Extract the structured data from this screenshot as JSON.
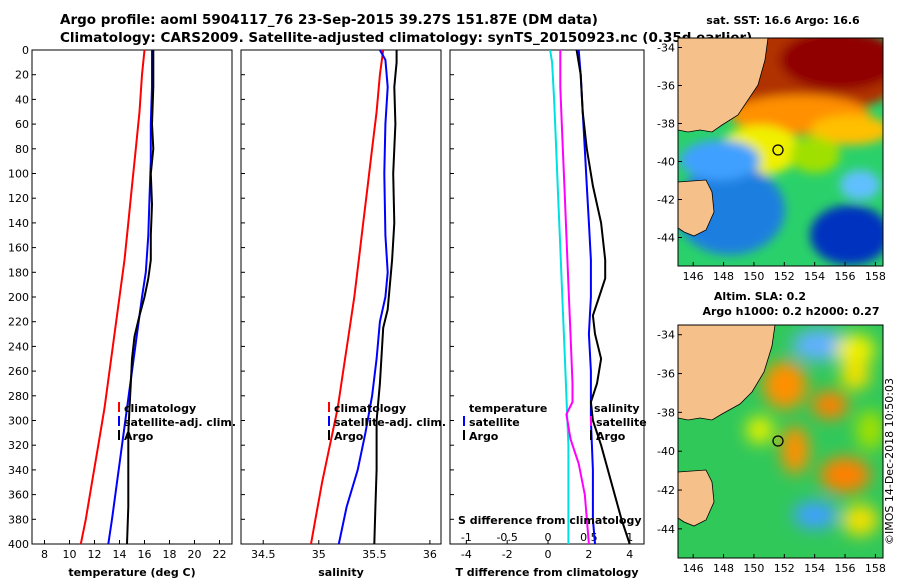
{
  "header": {
    "line1": "Argo profile: aoml 5904117_76 23-Sep-2015 39.27S 151.87E (DM data)",
    "line2": "Climatology: CARS2009. Satellite-adjusted climatology: synTS_20150923.nc (0.35d earlier)"
  },
  "footer": {
    "credit": "©IMOS 14-Dec-2018 10:50:03"
  },
  "colors": {
    "climatology": "#ff0000",
    "satellite": "#0000ff",
    "argo": "#000000",
    "tdiff": "#00e0e0",
    "sdiff": "#ff00ff"
  },
  "chart_data": [
    {
      "type": "line",
      "name": "temperature-profile",
      "xlabel": "temperature (deg C)",
      "xlim": [
        7,
        23
      ],
      "xticks": [
        8,
        10,
        12,
        14,
        16,
        18,
        20,
        22
      ],
      "ylim": [
        400,
        0
      ],
      "yticks": [
        0,
        20,
        40,
        60,
        80,
        100,
        120,
        140,
        160,
        180,
        200,
        220,
        240,
        260,
        280,
        300,
        320,
        340,
        360,
        380,
        400
      ],
      "legend": [
        "climatology",
        "satellite-adj. clim.",
        "Argo"
      ],
      "series": [
        {
          "name": "climatology",
          "color": "#ff0000",
          "points": [
            [
              16.0,
              0
            ],
            [
              15.8,
              20
            ],
            [
              15.6,
              50
            ],
            [
              15.3,
              80
            ],
            [
              15.0,
              110
            ],
            [
              14.7,
              140
            ],
            [
              14.4,
              170
            ],
            [
              14.0,
              200
            ],
            [
              13.6,
              230
            ],
            [
              13.2,
              260
            ],
            [
              12.8,
              290
            ],
            [
              12.3,
              320
            ],
            [
              11.8,
              350
            ],
            [
              11.3,
              380
            ],
            [
              10.9,
              400
            ]
          ]
        },
        {
          "name": "satellite-adj. clim.",
          "color": "#0000ff",
          "points": [
            [
              16.6,
              0
            ],
            [
              16.6,
              30
            ],
            [
              16.5,
              60
            ],
            [
              16.5,
              90
            ],
            [
              16.4,
              120
            ],
            [
              16.3,
              150
            ],
            [
              16.1,
              180
            ],
            [
              15.8,
              200
            ],
            [
              15.4,
              230
            ],
            [
              15.0,
              260
            ],
            [
              14.6,
              290
            ],
            [
              14.2,
              320
            ],
            [
              13.8,
              350
            ],
            [
              13.4,
              380
            ],
            [
              13.1,
              400
            ]
          ]
        },
        {
          "name": "Argo",
          "color": "#000000",
          "points": [
            [
              16.7,
              0
            ],
            [
              16.7,
              30
            ],
            [
              16.6,
              60
            ],
            [
              16.7,
              80
            ],
            [
              16.5,
              100
            ],
            [
              16.6,
              125
            ],
            [
              16.5,
              150
            ],
            [
              16.5,
              170
            ],
            [
              16.3,
              185
            ],
            [
              16.0,
              200
            ],
            [
              15.6,
              215
            ],
            [
              15.2,
              232
            ],
            [
              15.0,
              250
            ],
            [
              14.9,
              270
            ],
            [
              14.8,
              290
            ],
            [
              14.7,
              310
            ],
            [
              14.7,
              340
            ],
            [
              14.7,
              370
            ],
            [
              14.6,
              400
            ]
          ]
        }
      ]
    },
    {
      "type": "line",
      "name": "salinity-profile",
      "xlabel": "salinity",
      "xlim": [
        34.3,
        36.1
      ],
      "xticks": [
        34.5,
        35,
        35.5,
        36
      ],
      "xticklabels": [
        "34.5",
        "35",
        "35.5",
        "36"
      ],
      "ylim": [
        400,
        0
      ],
      "legend": [
        "climatology",
        "satellite-adj. clim.",
        "Argo"
      ],
      "series": [
        {
          "name": "climatology",
          "color": "#ff0000",
          "points": [
            [
              35.58,
              0
            ],
            [
              35.55,
              20
            ],
            [
              35.52,
              50
            ],
            [
              35.48,
              80
            ],
            [
              35.44,
              110
            ],
            [
              35.4,
              140
            ],
            [
              35.36,
              170
            ],
            [
              35.32,
              200
            ],
            [
              35.27,
              230
            ],
            [
              35.22,
              260
            ],
            [
              35.17,
              290
            ],
            [
              35.1,
              320
            ],
            [
              35.03,
              350
            ],
            [
              34.97,
              380
            ],
            [
              34.93,
              400
            ]
          ]
        },
        {
          "name": "satellite-adj. clim.",
          "color": "#0000ff",
          "points": [
            [
              35.55,
              0
            ],
            [
              35.6,
              8
            ],
            [
              35.62,
              30
            ],
            [
              35.6,
              60
            ],
            [
              35.59,
              100
            ],
            [
              35.6,
              150
            ],
            [
              35.62,
              180
            ],
            [
              35.6,
              200
            ],
            [
              35.55,
              220
            ],
            [
              35.52,
              250
            ],
            [
              35.48,
              280
            ],
            [
              35.42,
              310
            ],
            [
              35.35,
              340
            ],
            [
              35.25,
              370
            ],
            [
              35.18,
              400
            ]
          ]
        },
        {
          "name": "Argo",
          "color": "#000000",
          "points": [
            [
              35.7,
              0
            ],
            [
              35.7,
              10
            ],
            [
              35.68,
              30
            ],
            [
              35.69,
              60
            ],
            [
              35.67,
              100
            ],
            [
              35.68,
              140
            ],
            [
              35.66,
              170
            ],
            [
              35.64,
              190
            ],
            [
              35.62,
              210
            ],
            [
              35.58,
              225
            ],
            [
              35.57,
              240
            ],
            [
              35.56,
              255
            ],
            [
              35.55,
              270
            ],
            [
              35.52,
              300
            ],
            [
              35.52,
              340
            ],
            [
              35.51,
              370
            ],
            [
              35.5,
              400
            ]
          ]
        }
      ]
    },
    {
      "type": "line",
      "name": "difference-profile",
      "xlabel": "T difference from climatology",
      "xlabel_top": "S difference from climatology",
      "xlim": [
        -4.8,
        4.7
      ],
      "xticks": [
        -4,
        -2,
        0,
        2,
        4
      ],
      "top_xticks": [
        -1,
        -0.5,
        0,
        0.5,
        1
      ],
      "top_xticklabels": [
        "-1",
        "-0.5",
        "0",
        "0.5",
        "1"
      ],
      "ylim": [
        400,
        0
      ],
      "legend_left": [
        "temperature",
        "satellite",
        "Argo"
      ],
      "legend_right": [
        "salinity",
        "satellite",
        "Argo"
      ],
      "series": [
        {
          "name": "temperature satellite",
          "color": "#00e0e0",
          "points": [
            [
              0.1,
              0
            ],
            [
              0.2,
              10
            ],
            [
              0.3,
              40
            ],
            [
              0.4,
              80
            ],
            [
              0.5,
              120
            ],
            [
              0.6,
              160
            ],
            [
              0.7,
              200
            ],
            [
              0.8,
              240
            ],
            [
              0.9,
              280
            ],
            [
              1.0,
              320
            ],
            [
              1.0,
              360
            ],
            [
              1.0,
              400
            ]
          ]
        },
        {
          "name": "salinity satellite",
          "color": "#ff00ff",
          "points": [
            [
              0.6,
              0
            ],
            [
              0.6,
              30
            ],
            [
              0.7,
              70
            ],
            [
              0.8,
              110
            ],
            [
              0.9,
              150
            ],
            [
              1.0,
              190
            ],
            [
              1.1,
              230
            ],
            [
              1.2,
              270
            ],
            [
              1.2,
              285
            ],
            [
              0.9,
              295
            ],
            [
              1.1,
              315
            ],
            [
              1.5,
              335
            ],
            [
              1.8,
              360
            ],
            [
              2.0,
              400
            ]
          ]
        },
        {
          "name": "temperature Argo",
          "color": "#0000ff",
          "points": [
            [
              1.5,
              0
            ],
            [
              1.6,
              20
            ],
            [
              1.7,
              50
            ],
            [
              1.8,
              80
            ],
            [
              1.9,
              110
            ],
            [
              2.0,
              140
            ],
            [
              2.1,
              170
            ],
            [
              2.1,
              200
            ],
            [
              2.0,
              230
            ],
            [
              2.1,
              260
            ],
            [
              2.1,
              300
            ],
            [
              2.2,
              340
            ],
            [
              2.2,
              380
            ],
            [
              2.3,
              400
            ]
          ]
        },
        {
          "name": "salinity Argo",
          "color": "#000000",
          "points": [
            [
              1.4,
              0
            ],
            [
              1.6,
              20
            ],
            [
              1.7,
              50
            ],
            [
              1.9,
              80
            ],
            [
              2.2,
              110
            ],
            [
              2.6,
              140
            ],
            [
              2.8,
              170
            ],
            [
              2.8,
              185
            ],
            [
              2.5,
              200
            ],
            [
              2.2,
              215
            ],
            [
              2.3,
              230
            ],
            [
              2.6,
              250
            ],
            [
              2.4,
              270
            ],
            [
              2.1,
              285
            ],
            [
              2.2,
              300
            ],
            [
              2.6,
              320
            ],
            [
              3.1,
              350
            ],
            [
              3.6,
              380
            ],
            [
              4.0,
              400
            ]
          ]
        }
      ]
    },
    {
      "type": "heatmap",
      "name": "sst-map",
      "title": "sat. SST: 16.6 Argo: 16.6",
      "xlim": [
        145,
        158.5
      ],
      "ylim": [
        -45.5,
        -33.5
      ],
      "xticks": [
        146,
        148,
        150,
        152,
        154,
        156,
        158
      ],
      "yticks": [
        -34,
        -36,
        -38,
        -40,
        -42,
        -44
      ],
      "argo_position": {
        "lon": 151.87,
        "lat": -39.27
      }
    },
    {
      "type": "heatmap",
      "name": "sla-map",
      "title": "Altim. SLA: 0.2",
      "subtitle": "Argo h1000: 0.2 h2000: 0.27",
      "xlim": [
        145,
        158.5
      ],
      "ylim": [
        -45.5,
        -33.5
      ],
      "xticks": [
        146,
        148,
        150,
        152,
        154,
        156,
        158
      ],
      "yticks": [
        -34,
        -36,
        -38,
        -40,
        -42,
        -44
      ],
      "argo_position": {
        "lon": 151.87,
        "lat": -39.27
      }
    }
  ]
}
